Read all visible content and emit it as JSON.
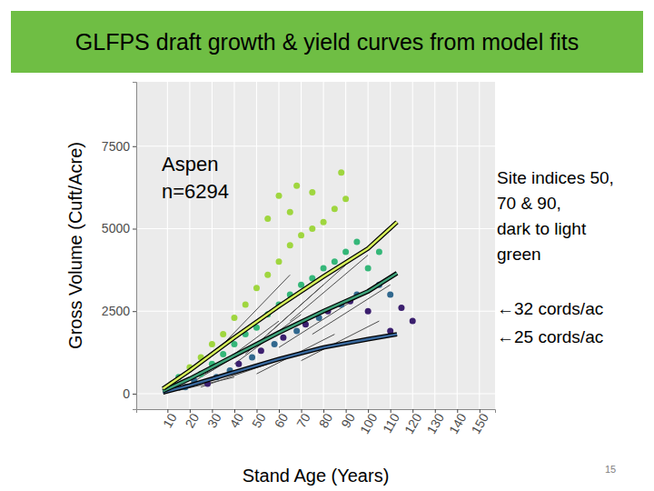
{
  "page_number": 15,
  "chart_data": {
    "type": "scatter",
    "title": "GLFPS draft growth & yield curves from model fits",
    "x_label": "Stand Age (Years)",
    "y_label": "Gross Volume (Cuft/Acre)",
    "xlim": [
      -4,
      157
    ],
    "ylim": [
      -470,
      9450
    ],
    "xticks": [
      10,
      20,
      30,
      40,
      50,
      60,
      70,
      80,
      90,
      100,
      110,
      120,
      130,
      140,
      150
    ],
    "yticks": [
      0,
      2500,
      5000,
      7500
    ],
    "grid": true,
    "annotations": [
      [
        "Aspen",
        "n=6294"
      ],
      [
        "Site indices 50,",
        "70 & 90,",
        "dark to light",
        "green"
      ],
      [
        "←32 cords/ac",
        "←25 cords/ac"
      ]
    ],
    "series": [
      {
        "type": "line",
        "color": "#4d4d4d",
        "line_style": "solid",
        "x": [
          10,
          30
        ],
        "values": [
          150,
          700
        ]
      },
      {
        "type": "line",
        "color": "#4d4d4d",
        "line_style": "solid",
        "x": [
          20,
          45
        ],
        "values": [
          300,
          1300
        ]
      },
      {
        "type": "line",
        "color": "#4d4d4d",
        "line_style": "solid",
        "x": [
          25,
          55
        ],
        "values": [
          200,
          900
        ]
      },
      {
        "type": "line",
        "color": "#4d4d4d",
        "line_style": "solid",
        "x": [
          30,
          60
        ],
        "values": [
          700,
          2200
        ]
      },
      {
        "type": "line",
        "color": "#4d4d4d",
        "line_style": "solid",
        "x": [
          40,
          70
        ],
        "values": [
          900,
          2400
        ]
      },
      {
        "type": "line",
        "color": "#4d4d4d",
        "line_style": "solid",
        "x": [
          45,
          80
        ],
        "values": [
          1200,
          3300
        ]
      },
      {
        "type": "line",
        "color": "#4d4d4d",
        "line_style": "solid",
        "x": [
          50,
          85
        ],
        "values": [
          600,
          1800
        ]
      },
      {
        "type": "line",
        "color": "#4d4d4d",
        "line_style": "solid",
        "x": [
          55,
          90
        ],
        "values": [
          1800,
          3900
        ]
      },
      {
        "type": "line",
        "color": "#4d4d4d",
        "line_style": "solid",
        "x": [
          60,
          95
        ],
        "values": [
          1400,
          2900
        ]
      },
      {
        "type": "line",
        "color": "#4d4d4d",
        "line_style": "solid",
        "x": [
          65,
          100
        ],
        "values": [
          2200,
          4200
        ]
      },
      {
        "type": "line",
        "color": "#4d4d4d",
        "line_style": "solid",
        "x": [
          70,
          105
        ],
        "values": [
          1000,
          2200
        ]
      },
      {
        "type": "line",
        "color": "#4d4d4d",
        "line_style": "solid",
        "x": [
          15,
          40
        ],
        "values": [
          100,
          500
        ]
      },
      {
        "type": "line",
        "color": "#4d4d4d",
        "line_style": "solid",
        "x": [
          35,
          65
        ],
        "values": [
          1500,
          3600
        ]
      },
      {
        "type": "line",
        "color": "#4d4d4d",
        "line_style": "solid",
        "x": [
          75,
          110
        ],
        "values": [
          1800,
          3300
        ]
      },
      {
        "type": "scatter",
        "marker": "circle",
        "x": [
          12,
          15,
          18,
          20,
          22,
          25,
          25,
          28,
          30,
          30,
          32,
          35,
          35,
          38,
          40,
          40,
          42,
          45,
          45,
          48,
          50,
          50,
          52,
          55,
          55,
          55,
          58,
          60,
          60,
          62,
          65,
          65,
          65,
          68,
          70,
          70,
          72,
          75,
          75,
          75,
          78,
          80,
          80,
          82,
          85,
          85,
          88,
          90,
          90,
          92,
          95,
          95,
          100,
          100,
          105,
          105,
          110,
          110,
          115,
          120,
          68,
          60,
          88
        ],
        "values": [
          300,
          500,
          200,
          800,
          400,
          1100,
          600,
          300,
          1500,
          900,
          500,
          1800,
          1200,
          700,
          2300,
          1500,
          900,
          2700,
          1800,
          1100,
          3200,
          2000,
          1300,
          3600,
          5300,
          2400,
          1500,
          4000,
          2700,
          1700,
          4500,
          5500,
          3000,
          1900,
          4800,
          3300,
          2100,
          5000,
          6100,
          3500,
          2300,
          5200,
          3800,
          2500,
          5600,
          4000,
          2700,
          5900,
          4300,
          2800,
          4600,
          3000,
          3800,
          2500,
          3300,
          4300,
          3000,
          1900,
          2600,
          2200,
          6300,
          6000,
          6700
        ],
        "colors": [
          "#9fd63f",
          "#35b779",
          "#31688e",
          "#9fd63f",
          "#31688e",
          "#9fd63f",
          "#35b779",
          "#3b1f6e",
          "#9fd63f",
          "#35b779",
          "#31688e",
          "#9fd63f",
          "#35b779",
          "#31688e",
          "#9fd63f",
          "#35b779",
          "#3b1f6e",
          "#9fd63f",
          "#35b779",
          "#31688e",
          "#9fd63f",
          "#35b779",
          "#3b1f6e",
          "#9fd63f",
          "#9fd63f",
          "#35b779",
          "#31688e",
          "#9fd63f",
          "#35b779",
          "#3b1f6e",
          "#9fd63f",
          "#9fd63f",
          "#35b779",
          "#31688e",
          "#9fd63f",
          "#35b779",
          "#3b1f6e",
          "#9fd63f",
          "#9fd63f",
          "#35b779",
          "#31688e",
          "#9fd63f",
          "#35b779",
          "#3b1f6e",
          "#9fd63f",
          "#35b779",
          "#31688e",
          "#9fd63f",
          "#35b779",
          "#3b1f6e",
          "#35b779",
          "#31688e",
          "#35b779",
          "#3b1f6e",
          "#31688e",
          "#35b779",
          "#31688e",
          "#3b1f6e",
          "#3b1f6e",
          "#3b1f6e",
          "#9fd63f",
          "#9fd63f",
          "#9fd63f"
        ]
      },
      {
        "type": "line",
        "color": "#3a6a9e",
        "line_style": "outlined",
        "x": [
          8,
          20,
          40,
          60,
          80,
          100,
          113
        ],
        "values": [
          40,
          250,
          650,
          1050,
          1400,
          1650,
          1800
        ]
      },
      {
        "type": "line",
        "color": "#3fa27a",
        "line_style": "outlined",
        "x": [
          8,
          20,
          40,
          60,
          80,
          100,
          113
        ],
        "values": [
          80,
          450,
          1150,
          1850,
          2500,
          3100,
          3650
        ]
      },
      {
        "type": "line",
        "color": "#d6f05a",
        "line_style": "outlined",
        "x": [
          8,
          20,
          40,
          60,
          80,
          100,
          113
        ],
        "values": [
          150,
          700,
          1700,
          2650,
          3550,
          4400,
          5200
        ]
      }
    ]
  }
}
